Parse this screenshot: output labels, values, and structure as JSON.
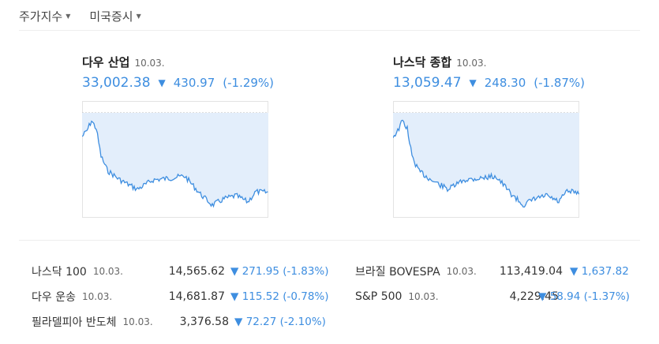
{
  "tabs": [
    {
      "label": "주가지수"
    },
    {
      "label": "미국증시"
    }
  ],
  "cards": [
    {
      "name": "다우 산업",
      "date": "10.03.",
      "value": "33,002.38",
      "change": "430.97",
      "pct": "(-1.29%)"
    },
    {
      "name": "나스닥 종합",
      "date": "10.03.",
      "value": "13,059.47",
      "change": "248.30",
      "pct": "(-1.87%)"
    }
  ],
  "rows": [
    {
      "name": "나스닥 100",
      "date": "10.03.",
      "value": "14,565.62",
      "change": "271.95",
      "pct": "(-1.83%)"
    },
    {
      "name": "다우 운송",
      "date": "10.03.",
      "value": "14,681.87",
      "change": "115.52",
      "pct": "(-0.78%)"
    },
    {
      "name": "필라델피아 반도체",
      "date": "10.03.",
      "value": "3,376.58",
      "change": "72.27",
      "pct": "(-2.10%)"
    },
    {
      "name": "브라질 BOVESPA",
      "date": "10.03.",
      "value": "113,419.04",
      "change": "1,637.82",
      "pct": ""
    },
    {
      "name": "S&P 500",
      "date": "10.03.",
      "value": "4,229.45",
      "change": "58.94",
      "pct": "(-1.37%)"
    }
  ],
  "colors": {
    "down": "#3e8ee0",
    "fill": "#e3eefb",
    "line": "#3e8ee0"
  }
}
